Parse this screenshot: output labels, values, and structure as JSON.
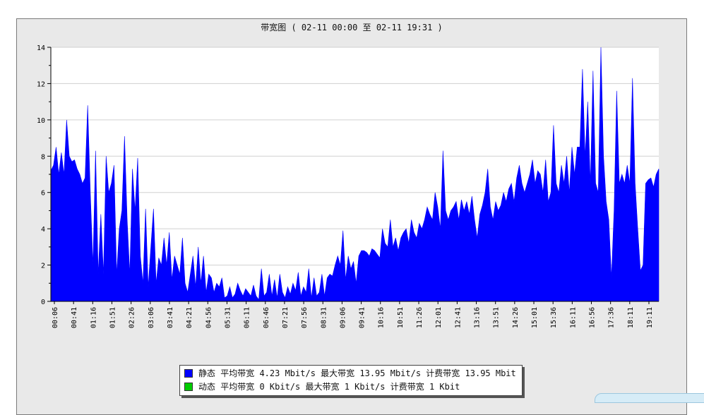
{
  "chart_data": {
    "type": "area",
    "title": "带宽图 ( 02-11 00:00 至 02-11 19:31 )",
    "xlabel": "",
    "ylabel": "",
    "ylim": [
      0,
      14
    ],
    "yticks": [
      0,
      2,
      4,
      6,
      8,
      10,
      12,
      14
    ],
    "grid": true,
    "colors": {
      "static": "#0000ff",
      "dynamic": "#00cc00",
      "plot_bg": "#ffffff",
      "frame_bg": "#e9e9e9"
    },
    "x_tick_labels": [
      "00:06",
      "00:41",
      "01:16",
      "01:51",
      "02:26",
      "03:06",
      "03:41",
      "04:21",
      "04:56",
      "05:31",
      "06:11",
      "06:46",
      "07:21",
      "07:56",
      "08:31",
      "09:06",
      "09:41",
      "10:16",
      "10:51",
      "11:26",
      "12:01",
      "12:41",
      "13:16",
      "13:51",
      "14:26",
      "15:01",
      "15:36",
      "16:11",
      "16:56",
      "17:36",
      "18:11",
      "19:11"
    ],
    "series": [
      {
        "name": "静态",
        "values": [
          7.2,
          7.5,
          8.5,
          7.0,
          8.2,
          7.0,
          10.0,
          8.0,
          7.7,
          7.8,
          7.3,
          7.0,
          6.5,
          6.8,
          10.8,
          6.0,
          2.0,
          8.3,
          1.5,
          4.8,
          1.5,
          8.0,
          6.0,
          6.5,
          7.5,
          1.5,
          4.0,
          5.0,
          9.1,
          4.5,
          1.5,
          7.3,
          5.0,
          7.9,
          2.5,
          1.0,
          5.1,
          0.8,
          3.0,
          5.1,
          1.0,
          2.4,
          2.0,
          3.5,
          2.0,
          3.8,
          1.2,
          2.5,
          2.0,
          1.5,
          3.5,
          1.0,
          0.5,
          1.5,
          2.5,
          0.8,
          3.0,
          1.0,
          2.5,
          0.5,
          1.5,
          1.3,
          0.5,
          1.0,
          0.8,
          1.3,
          0.2,
          0.3,
          0.8,
          0.2,
          0.4,
          1.0,
          0.6,
          0.3,
          0.7,
          0.5,
          0.3,
          0.9,
          0.3,
          0.1,
          1.8,
          0.3,
          0.5,
          1.5,
          0.3,
          1.2,
          0.2,
          1.5,
          0.5,
          0.2,
          0.8,
          0.4,
          1.0,
          0.6,
          1.6,
          0.3,
          0.8,
          0.5,
          1.8,
          0.2,
          1.3,
          0.3,
          0.5,
          1.5,
          0.3,
          1.3,
          1.5,
          1.4,
          2.0,
          2.5,
          2.0,
          3.9,
          1.2,
          2.5,
          1.8,
          2.2,
          1.0,
          2.5,
          2.8,
          2.8,
          2.7,
          2.5,
          2.9,
          2.8,
          2.6,
          2.4,
          4.0,
          3.2,
          3.0,
          4.5,
          3.0,
          3.5,
          2.8,
          3.5,
          3.8,
          4.0,
          3.2,
          4.5,
          3.8,
          3.5,
          4.3,
          4.0,
          4.5,
          5.2,
          4.8,
          4.5,
          6.0,
          5.2,
          4.0,
          8.3,
          5.0,
          4.5,
          5.0,
          5.2,
          5.5,
          4.5,
          5.6,
          5.0,
          5.5,
          4.8,
          5.8,
          4.5,
          3.5,
          4.8,
          5.3,
          6.0,
          7.3,
          5.2,
          4.5,
          5.5,
          5.0,
          5.3,
          6.0,
          5.5,
          6.2,
          6.5,
          5.5,
          6.8,
          7.5,
          6.5,
          6.0,
          6.5,
          7.0,
          7.8,
          6.5,
          7.2,
          7.0,
          6.0,
          7.8,
          5.5,
          6.0,
          9.7,
          6.5,
          6.0,
          7.5,
          6.5,
          8.0,
          6.0,
          8.5,
          7.0,
          8.5,
          8.5,
          12.8,
          8.0,
          11.0,
          6.5,
          12.7,
          6.5,
          6.0,
          14.0,
          8.0,
          5.5,
          4.5,
          1.3,
          5.0,
          11.6,
          6.5,
          7.0,
          6.5,
          7.5,
          6.5,
          12.3,
          6.5,
          4.0,
          1.7,
          2.0,
          6.5,
          6.7,
          6.8,
          6.3,
          7.0,
          7.3
        ]
      },
      {
        "name": "动态",
        "values": []
      }
    ],
    "legend": {
      "placement": "bottom-center",
      "entries": [
        {
          "name": "静态",
          "text": "静态 平均带宽 4.23 Mbit/s 最大带宽 13.95 Mbit/s 计费带宽 13.95 Mbit",
          "color": "#0000ff"
        },
        {
          "name": "动态",
          "text": "动态 平均带宽 0 Kbit/s 最大带宽 1 Kbit/s 计费带宽 1 Kbit",
          "color": "#00cc00"
        }
      ]
    }
  }
}
